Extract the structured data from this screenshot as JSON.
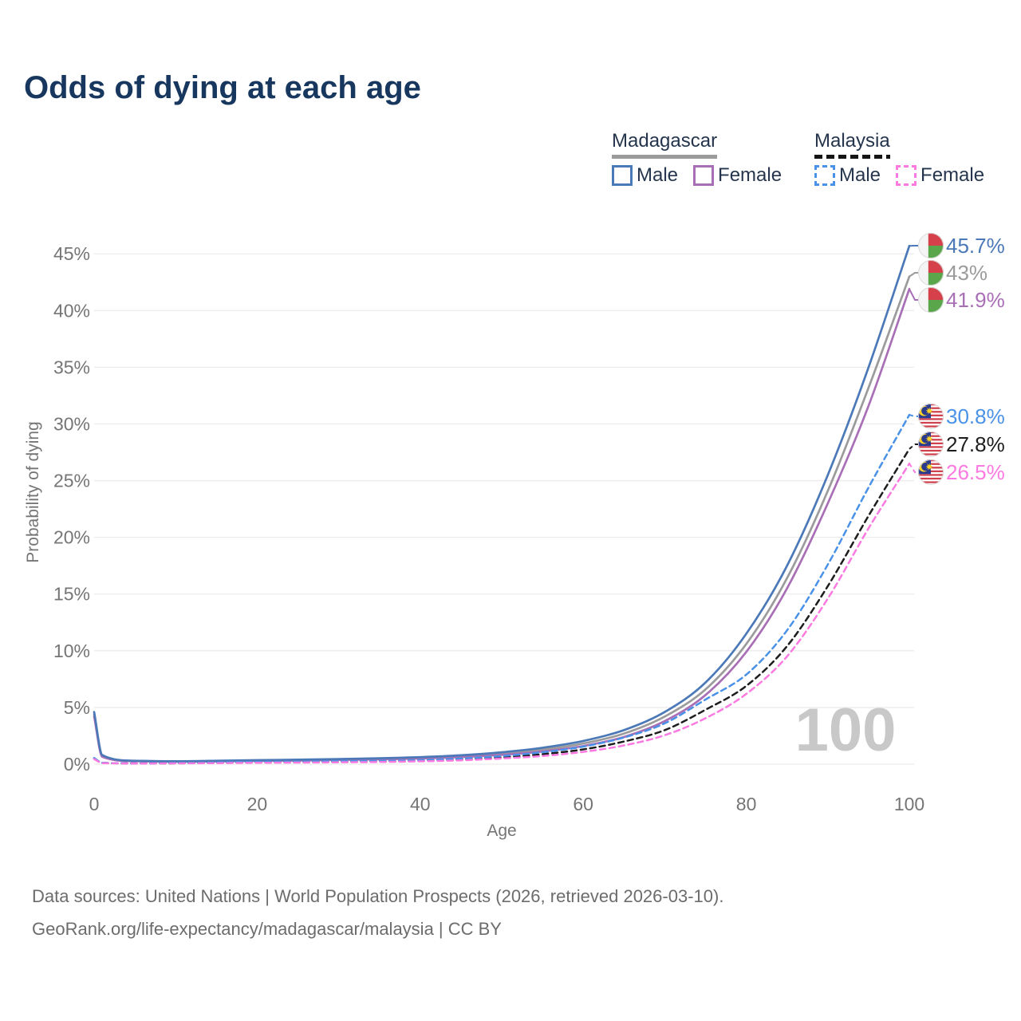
{
  "title": "Odds of dying at each age",
  "legend": {
    "madagascar": {
      "label": "Madagascar",
      "male": "Male",
      "female": "Female"
    },
    "malaysia": {
      "label": "Malaysia",
      "male": "Male",
      "female": "Female"
    }
  },
  "footer": {
    "line1": "Data sources: United Nations | World Population Prospects (2026, retrieved 2026-03-10).",
    "line2": "GeoRank.org/life-expectancy/madagascar/malaysia | CC BY"
  },
  "colors": {
    "title_text": "#17375e",
    "legend_text": "#25354d",
    "axis_text": "#757575",
    "gridline": "#ececec",
    "watermark_text": "#c8c8c8",
    "footer_text": "#6c6c6c",
    "madagascar_male": "#4b79b8",
    "madagascar_all": "#9b9b9b",
    "madagascar_female": "#a96fb6",
    "malaysia_male": "#4a92e8",
    "malaysia_all": "#1d1d1d",
    "malaysia_female": "#fb7ae1",
    "flag_madagascar_red": "#d6404a",
    "flag_madagascar_green": "#5aa64b",
    "flag_malaysia_red": "#d0414e",
    "flag_malaysia_blue": "#2a3b8f",
    "flag_malaysia_yellow": "#ffd424"
  },
  "watermark": "100",
  "chart_data": {
    "type": "line",
    "title": "Odds of dying at each age",
    "xlabel": "Age",
    "ylabel": "Probability of dying",
    "xlim": [
      0,
      100
    ],
    "ylim": [
      0,
      46
    ],
    "xticks": [
      0,
      20,
      40,
      60,
      80,
      100
    ],
    "yticks": [
      0,
      5,
      10,
      15,
      20,
      25,
      30,
      35,
      40,
      45
    ],
    "ytick_suffix": "%",
    "grid": true,
    "legend_position": "top-right",
    "hover_age_indicator": "100",
    "ages": [
      0,
      1,
      5,
      10,
      15,
      20,
      25,
      30,
      35,
      40,
      45,
      50,
      55,
      60,
      65,
      70,
      75,
      80,
      85,
      90,
      95,
      100
    ],
    "series": [
      {
        "name": "Madagascar Male",
        "country": "Madagascar",
        "sex": "Male",
        "style": "solid",
        "color": "#4b79b8",
        "flag": "madagascar",
        "end_label": "45.7%",
        "values": [
          4.6,
          0.8,
          0.3,
          0.25,
          0.3,
          0.35,
          0.4,
          0.45,
          0.52,
          0.62,
          0.78,
          1.05,
          1.45,
          2.05,
          3.0,
          4.6,
          7.2,
          11.5,
          17.5,
          25.5,
          35.0,
          45.7
        ]
      },
      {
        "name": "Madagascar Both sexes",
        "country": "Madagascar",
        "sex": "Both",
        "style": "solid",
        "color": "#9b9b9b",
        "flag": "madagascar",
        "end_label": "43%",
        "values": [
          4.4,
          0.72,
          0.28,
          0.23,
          0.27,
          0.32,
          0.36,
          0.41,
          0.47,
          0.56,
          0.7,
          0.93,
          1.28,
          1.82,
          2.7,
          4.2,
          6.6,
          10.6,
          16.4,
          24.1,
          33.2,
          43.0
        ]
      },
      {
        "name": "Madagascar Female",
        "country": "Madagascar",
        "sex": "Female",
        "style": "solid",
        "color": "#a96fb6",
        "flag": "madagascar",
        "end_label": "41.9%",
        "values": [
          4.2,
          0.65,
          0.26,
          0.21,
          0.24,
          0.28,
          0.32,
          0.37,
          0.42,
          0.5,
          0.62,
          0.82,
          1.12,
          1.6,
          2.4,
          3.8,
          6.1,
          9.9,
          15.5,
          23.0,
          31.6,
          41.9
        ]
      },
      {
        "name": "Malaysia Male",
        "country": "Malaysia",
        "sex": "Male",
        "style": "dashed",
        "color": "#4a92e8",
        "flag": "malaysia",
        "end_label": "30.8%",
        "values": [
          0.55,
          0.12,
          0.08,
          0.09,
          0.14,
          0.2,
          0.22,
          0.25,
          0.29,
          0.36,
          0.5,
          0.72,
          1.05,
          1.55,
          2.35,
          3.6,
          5.7,
          7.9,
          11.8,
          17.6,
          24.4,
          30.8
        ]
      },
      {
        "name": "Malaysia Both sexes",
        "country": "Malaysia",
        "sex": "Both",
        "style": "dashed",
        "color": "#1d1d1d",
        "flag": "malaysia",
        "end_label": "27.8%",
        "values": [
          0.5,
          0.11,
          0.07,
          0.08,
          0.11,
          0.16,
          0.18,
          0.2,
          0.24,
          0.3,
          0.42,
          0.6,
          0.88,
          1.3,
          2.0,
          3.0,
          4.8,
          6.9,
          10.4,
          15.7,
          21.9,
          27.8
        ]
      },
      {
        "name": "Malaysia Female",
        "country": "Malaysia",
        "sex": "Female",
        "style": "dashed",
        "color": "#fb7ae1",
        "flag": "malaysia",
        "end_label": "26.5%",
        "values": [
          0.45,
          0.1,
          0.06,
          0.07,
          0.09,
          0.12,
          0.14,
          0.16,
          0.19,
          0.25,
          0.34,
          0.5,
          0.72,
          1.08,
          1.65,
          2.55,
          4.05,
          6.2,
          9.5,
          14.6,
          20.8,
          26.5
        ]
      }
    ]
  }
}
